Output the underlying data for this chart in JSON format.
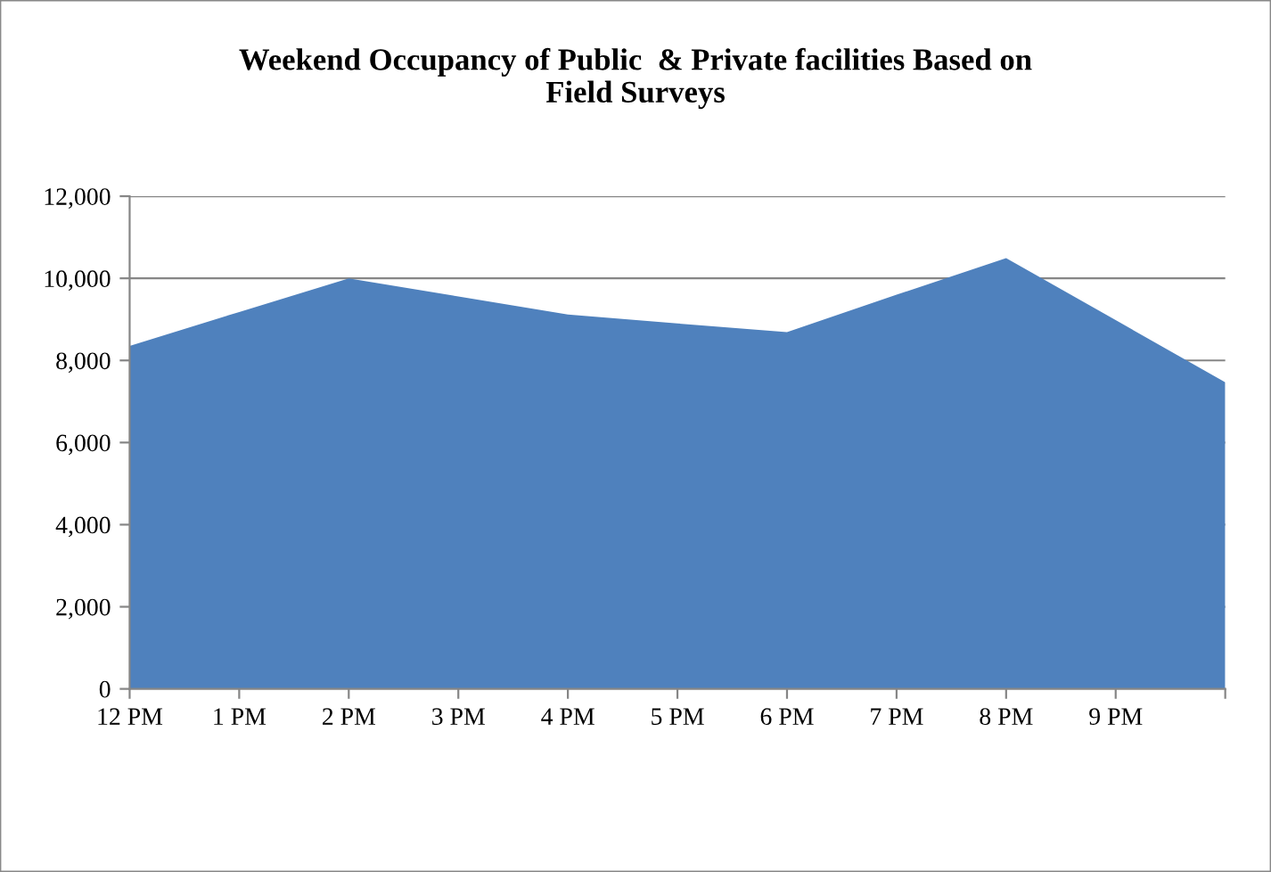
{
  "chart_data": {
    "type": "area",
    "title": "Weekend Occupancy of Public  & Private facilities Based on\nField Surveys",
    "categories": [
      "12 PM",
      "1 PM",
      "2 PM",
      "3 PM",
      "4 PM",
      "5 PM",
      "6 PM",
      "7 PM",
      "8 PM",
      "9 PM",
      null
    ],
    "series": [
      {
        "color": "#4f81bd",
        "values": [
          8350,
          9180,
          10000,
          9560,
          9120,
          8900,
          8690,
          9600,
          10490,
          8980,
          7470
        ]
      }
    ],
    "ylim": [
      0,
      12000
    ],
    "yticks": [
      {
        "value": 0,
        "label": "0"
      },
      {
        "value": 2000,
        "label": "2,000"
      },
      {
        "value": 4000,
        "label": "4,000"
      },
      {
        "value": 6000,
        "label": "6,000"
      },
      {
        "value": 8000,
        "label": "8,000"
      },
      {
        "value": 10000,
        "label": "10,000"
      },
      {
        "value": 12000,
        "label": "12,000"
      }
    ],
    "grid": "y"
  }
}
